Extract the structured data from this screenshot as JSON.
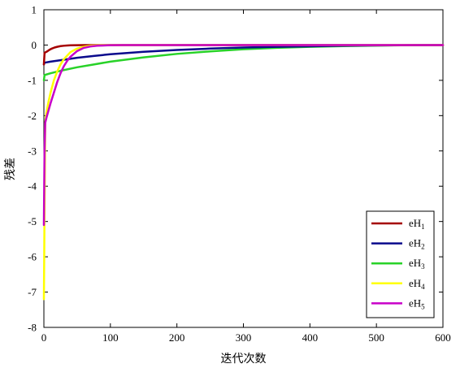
{
  "chart_data": {
    "type": "line",
    "xlabel": "迭代次数",
    "ylabel": "残差",
    "xlim": [
      0,
      600
    ],
    "ylim": [
      -8,
      1
    ],
    "xticks": [
      "0",
      "100",
      "200",
      "300",
      "400",
      "500",
      "600"
    ],
    "yticks": [
      "1",
      "0",
      "-1",
      "-2",
      "-3",
      "-4",
      "-5",
      "-6",
      "-7",
      "-8"
    ],
    "grid": false,
    "legend_position": "bottom-right",
    "series": [
      {
        "label_main": "eH",
        "label_sub": "1",
        "color": "#a50000",
        "x": [
          0,
          1,
          3,
          5,
          8,
          12,
          16,
          20,
          25,
          30,
          35,
          40,
          50,
          60,
          80,
          600
        ],
        "y": [
          -0.55,
          -0.22,
          -0.2,
          -0.18,
          -0.14,
          -0.1,
          -0.07,
          -0.05,
          -0.03,
          -0.02,
          -0.012,
          -0.007,
          -0.003,
          -0.001,
          0,
          0
        ]
      },
      {
        "label_main": "eH",
        "label_sub": "2",
        "color": "#0a0a8c",
        "x": [
          0,
          1,
          10,
          25,
          50,
          75,
          100,
          150,
          200,
          250,
          300,
          350,
          400,
          450,
          500,
          600
        ],
        "y": [
          -0.55,
          -0.5,
          -0.47,
          -0.43,
          -0.36,
          -0.31,
          -0.26,
          -0.19,
          -0.14,
          -0.1,
          -0.07,
          -0.05,
          -0.035,
          -0.02,
          -0.01,
          0
        ]
      },
      {
        "label_main": "eH",
        "label_sub": "3",
        "color": "#28d228",
        "x": [
          0,
          1,
          10,
          25,
          50,
          75,
          100,
          150,
          200,
          250,
          300,
          350,
          400,
          450,
          500,
          550,
          600
        ],
        "y": [
          -1.0,
          -0.85,
          -0.8,
          -0.73,
          -0.63,
          -0.55,
          -0.47,
          -0.35,
          -0.25,
          -0.18,
          -0.12,
          -0.08,
          -0.05,
          -0.03,
          -0.015,
          -0.005,
          0
        ]
      },
      {
        "label_main": "eH",
        "label_sub": "4",
        "color": "#ffff00",
        "x": [
          0,
          0.5,
          1,
          2,
          4,
          7,
          10,
          15,
          20,
          25,
          30,
          40,
          50,
          60,
          70,
          80,
          100,
          600
        ],
        "y": [
          -7.2,
          -6.0,
          -4.5,
          -2.2,
          -1.9,
          -1.6,
          -1.35,
          -1.0,
          -0.75,
          -0.55,
          -0.4,
          -0.2,
          -0.1,
          -0.05,
          -0.02,
          -0.01,
          0,
          0
        ]
      },
      {
        "label_main": "eH",
        "label_sub": "5",
        "color": "#c800c8",
        "x": [
          0,
          0.5,
          1,
          2,
          4,
          7,
          10,
          15,
          20,
          25,
          30,
          35,
          40,
          50,
          60,
          70,
          80,
          100,
          120,
          600
        ],
        "y": [
          -5.1,
          -4.0,
          -3.0,
          -2.2,
          -2.05,
          -1.85,
          -1.65,
          -1.35,
          -1.05,
          -0.8,
          -0.6,
          -0.45,
          -0.33,
          -0.17,
          -0.08,
          -0.04,
          -0.02,
          -0.005,
          0,
          0
        ]
      }
    ]
  }
}
